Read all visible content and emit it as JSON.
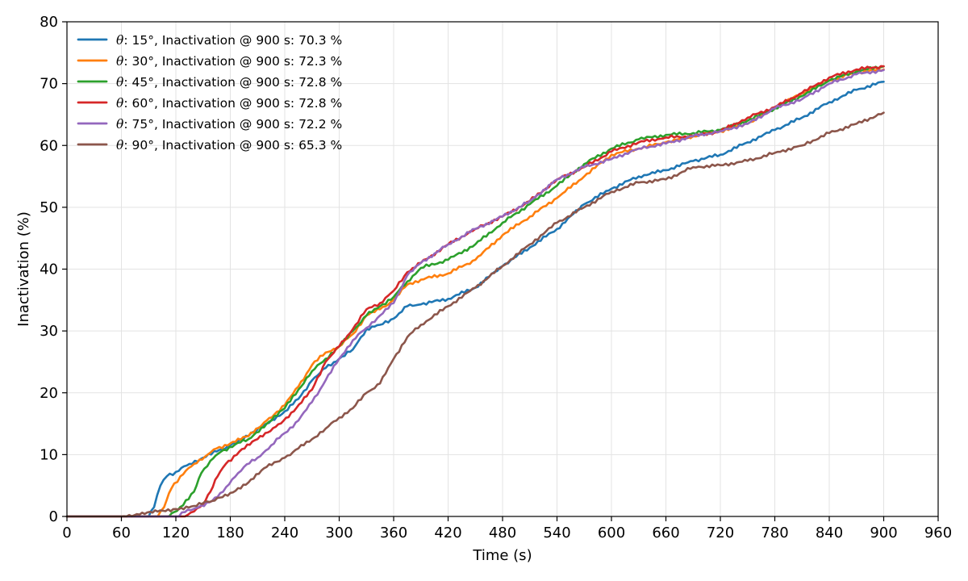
{
  "chart_data": {
    "type": "line",
    "title": "",
    "xlabel": "Time (s)",
    "ylabel": "Inactivation (%)",
    "xlim": [
      0,
      960
    ],
    "ylim": [
      0,
      80
    ],
    "xticks": [
      0,
      60,
      120,
      180,
      240,
      300,
      360,
      420,
      480,
      540,
      600,
      660,
      720,
      780,
      840,
      900,
      960
    ],
    "yticks": [
      0,
      10,
      20,
      30,
      40,
      50,
      60,
      70,
      80
    ],
    "grid": true,
    "legend_position": "top-left",
    "series": [
      {
        "name": "θ: 15°, Inactivation @ 900 s: 70.3 %",
        "theta_symbol": "θ",
        "label_rest": ": 15°, Inactivation @ 900 s: 70.3 %",
        "color": "#1f77b4",
        "x": [
          0,
          90,
          96,
          103,
          110,
          120,
          135,
          150,
          165,
          180,
          200,
          220,
          240,
          255,
          270,
          285,
          300,
          315,
          330,
          345,
          360,
          375,
          390,
          420,
          450,
          480,
          510,
          540,
          570,
          600,
          630,
          660,
          690,
          720,
          750,
          780,
          810,
          840,
          870,
          900
        ],
        "y": [
          0,
          0,
          1.5,
          5,
          6.5,
          7.2,
          8.5,
          9.5,
          10.5,
          11.5,
          13,
          15,
          17,
          19,
          22,
          24,
          25.5,
          27,
          30.3,
          31,
          32,
          34,
          34.3,
          35.2,
          37,
          40.5,
          43.5,
          46.5,
          50.5,
          53,
          55,
          56,
          57.5,
          58.5,
          60.5,
          62.5,
          64.5,
          67,
          69,
          70.3
        ]
      },
      {
        "name": "θ: 30°, Inactivation @ 900 s: 72.3 %",
        "theta_symbol": "θ",
        "label_rest": ": 30°, Inactivation @ 900 s: 72.3 %",
        "color": "#ff7f0e",
        "x": [
          0,
          100,
          107,
          115,
          125,
          140,
          155,
          165,
          180,
          200,
          220,
          240,
          255,
          270,
          285,
          300,
          315,
          330,
          345,
          360,
          375,
          390,
          420,
          450,
          480,
          510,
          540,
          570,
          600,
          630,
          660,
          690,
          720,
          750,
          780,
          810,
          840,
          870,
          900
        ],
        "y": [
          0,
          0,
          1.5,
          4.5,
          6.5,
          8.5,
          10,
          11,
          11.8,
          13,
          15.5,
          18,
          21,
          24.5,
          26.5,
          27.5,
          29.5,
          32.5,
          33.5,
          35,
          37.5,
          38.3,
          39.3,
          41.5,
          45.5,
          48.5,
          51.5,
          55,
          58.5,
          59.5,
          60.5,
          61.5,
          62.3,
          63.5,
          66,
          68.5,
          70.5,
          71.8,
          72.3
        ]
      },
      {
        "name": "θ: 45°, Inactivation @ 900 s: 72.8 %",
        "theta_symbol": "θ",
        "label_rest": ": 45°, Inactivation @ 900 s: 72.8 %",
        "color": "#2ca02c",
        "x": [
          0,
          110,
          118,
          128,
          140,
          148,
          158,
          170,
          185,
          200,
          220,
          240,
          255,
          270,
          285,
          300,
          315,
          330,
          345,
          360,
          375,
          390,
          420,
          450,
          480,
          510,
          540,
          570,
          600,
          630,
          660,
          690,
          720,
          750,
          780,
          810,
          840,
          870,
          900
        ],
        "y": [
          0,
          0,
          0.7,
          1.8,
          4,
          7,
          9,
          10.5,
          11.6,
          12.5,
          15,
          17.5,
          20.5,
          23.5,
          25.5,
          27.5,
          30,
          32.5,
          34,
          35.5,
          38,
          40.2,
          41.5,
          44,
          47.5,
          50.5,
          53.5,
          57,
          59.5,
          61,
          61.7,
          62,
          62.5,
          64,
          66,
          68,
          70.5,
          72,
          72.8
        ]
      },
      {
        "name": "θ: 60°, Inactivation @ 900 s: 72.8 %",
        "theta_symbol": "θ",
        "label_rest": ": 60°, Inactivation @ 900 s: 72.8 %",
        "color": "#d62728",
        "x": [
          0,
          130,
          140,
          150,
          158,
          166,
          175,
          190,
          210,
          230,
          250,
          270,
          285,
          300,
          315,
          330,
          345,
          360,
          375,
          390,
          420,
          450,
          480,
          510,
          540,
          570,
          600,
          630,
          660,
          690,
          720,
          750,
          780,
          810,
          840,
          870,
          900
        ],
        "y": [
          0,
          0,
          0.8,
          2,
          4,
          6.5,
          8.5,
          10.5,
          12.5,
          14.5,
          17,
          20.5,
          25,
          27.5,
          30.3,
          33.5,
          34.5,
          36.5,
          39.5,
          41,
          44,
          46.5,
          48.5,
          51,
          54.5,
          56.5,
          59,
          60.5,
          61.3,
          61.5,
          62.3,
          64.5,
          66.2,
          68.5,
          71,
          72.3,
          72.8
        ]
      },
      {
        "name": "θ: 75°, Inactivation @ 900 s: 72.2 %",
        "theta_symbol": "θ",
        "label_rest": ": 75°, Inactivation @ 900 s: 72.2 %",
        "color": "#9467bd",
        "x": [
          0,
          120,
          130,
          145,
          160,
          172,
          182,
          195,
          210,
          225,
          240,
          255,
          270,
          285,
          300,
          315,
          330,
          345,
          360,
          375,
          390,
          420,
          450,
          480,
          510,
          540,
          570,
          600,
          630,
          660,
          690,
          720,
          750,
          780,
          810,
          840,
          870,
          900
        ],
        "y": [
          0,
          0,
          0.7,
          1.5,
          2.5,
          4,
          6,
          8,
          9.5,
          11.5,
          13.5,
          15.5,
          18.5,
          22,
          25.5,
          28.5,
          30.5,
          32.5,
          34.5,
          39,
          41,
          44,
          46.5,
          48.5,
          51,
          54.5,
          56.5,
          57.8,
          59.5,
          60.3,
          61.5,
          62.3,
          63.5,
          66,
          67.5,
          70,
          71.5,
          72.2
        ]
      },
      {
        "name": "θ: 90°, Inactivation @ 900 s: 65.3 %",
        "theta_symbol": "θ",
        "label_rest": ": 90°, Inactivation @ 900 s: 65.3 %",
        "color": "#8c564b",
        "x": [
          0,
          60,
          80,
          100,
          120,
          140,
          160,
          180,
          200,
          220,
          240,
          255,
          270,
          285,
          300,
          315,
          330,
          345,
          360,
          375,
          390,
          420,
          450,
          480,
          510,
          540,
          570,
          600,
          630,
          660,
          690,
          720,
          750,
          780,
          810,
          840,
          870,
          900
        ],
        "y": [
          0,
          0,
          0.3,
          0.8,
          1.2,
          1.7,
          2.5,
          3.8,
          5.5,
          8,
          9.5,
          11,
          12.5,
          14.2,
          16,
          17.5,
          20,
          21.5,
          25.5,
          29,
          31,
          34,
          37,
          40.5,
          44,
          47.5,
          50,
          52.5,
          54,
          54.5,
          56.5,
          56.8,
          57.5,
          58.8,
          60,
          62,
          63.5,
          65.3
        ]
      }
    ]
  }
}
